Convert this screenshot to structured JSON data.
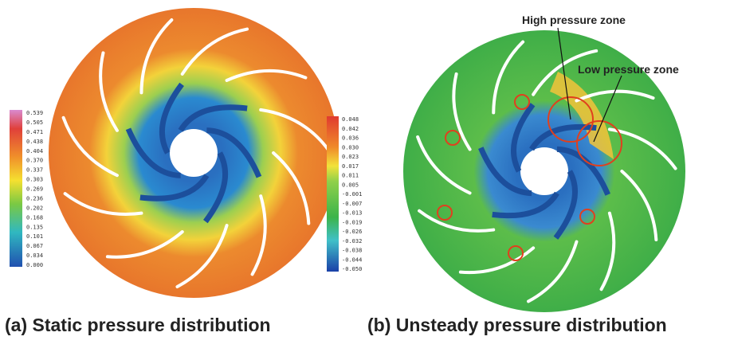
{
  "panels": [
    {
      "caption": "(a) Static pressure distribution",
      "colorbar": [
        "0.539",
        "0.505",
        "0.471",
        "0.438",
        "0.404",
        "0.370",
        "0.337",
        "0.303",
        "0.269",
        "0.236",
        "0.202",
        "0.168",
        "0.135",
        "0.101",
        "0.067",
        "0.034",
        "0.000"
      ]
    },
    {
      "caption": "(b) Unsteady pressure distribution",
      "colorbar": [
        "0.048",
        "0.042",
        "0.036",
        "0.030",
        "0.023",
        "0.017",
        "0.011",
        "0.005",
        "-0.001",
        "-0.007",
        "-0.013",
        "-0.019",
        "-0.026",
        "-0.032",
        "-0.038",
        "-0.044",
        "-0.050"
      ]
    }
  ],
  "annotations": [
    "High pressure zone",
    "Low pressure zone"
  ]
}
